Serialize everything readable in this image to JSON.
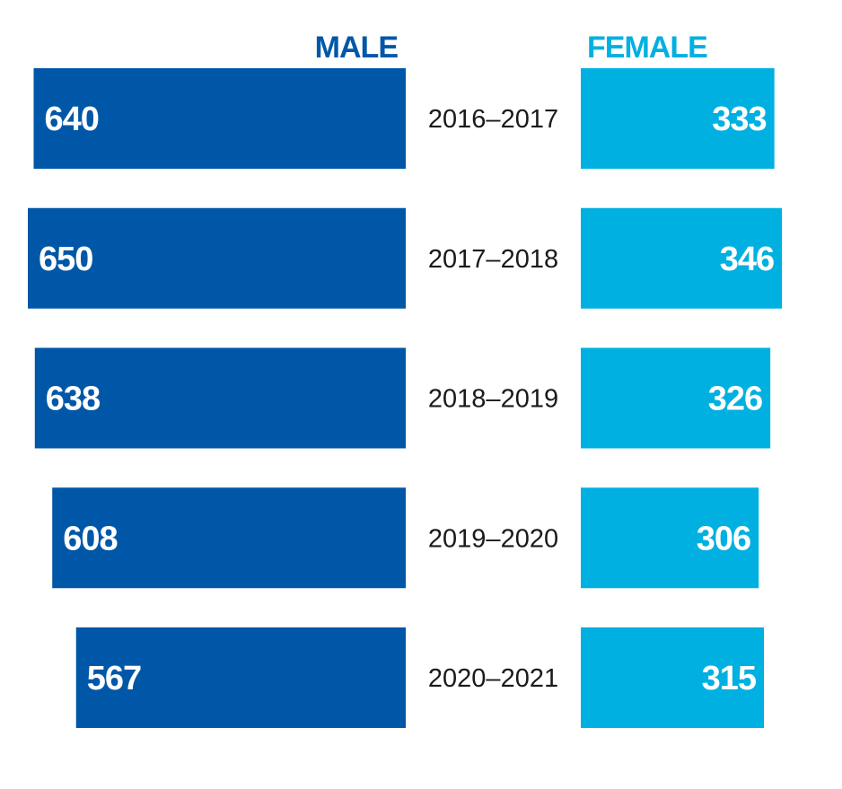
{
  "chart_data": {
    "type": "bar",
    "layout": "butterfly",
    "categories": [
      "2016–2017",
      "2017–2018",
      "2018–2019",
      "2019–2020",
      "2020–2021"
    ],
    "series": [
      {
        "name": "MALE",
        "values": [
          640,
          650,
          638,
          608,
          567
        ],
        "color": "#0057a8"
      },
      {
        "name": "FEMALE",
        "values": [
          333,
          346,
          326,
          306,
          315
        ],
        "color": "#00b0e0"
      }
    ],
    "title": "",
    "xlabel": "",
    "ylabel": "",
    "grid": false,
    "legend": "top"
  }
}
